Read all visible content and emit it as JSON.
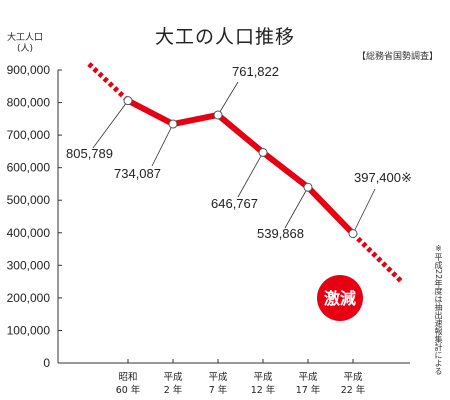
{
  "chart_data": {
    "type": "line",
    "title": "大工の人口推移",
    "source": "【総務省国勢調査】",
    "y_unit": [
      "大工人口",
      "(人)"
    ],
    "ylim": [
      0,
      900000
    ],
    "y_ticks": [
      "0",
      "100,000",
      "200,000",
      "300,000",
      "400,000",
      "500,000",
      "600,000",
      "700,000",
      "800,000",
      "900,000"
    ],
    "categories": [
      [
        "昭和",
        "60 年"
      ],
      [
        "平成",
        "2 年"
      ],
      [
        "平成",
        "7 年"
      ],
      [
        "平成",
        "12 年"
      ],
      [
        "平成",
        "17 年"
      ],
      [
        "平成",
        "22 年"
      ]
    ],
    "values": [
      805789,
      734087,
      761822,
      646767,
      539868,
      397400
    ],
    "data_labels": [
      "805,789",
      "734,087",
      "761,822",
      "646,767",
      "539,868",
      "397,400※"
    ],
    "badge": "激減",
    "note": "※平成22年度は抽出速報集計による",
    "line_color": "#e60012"
  }
}
